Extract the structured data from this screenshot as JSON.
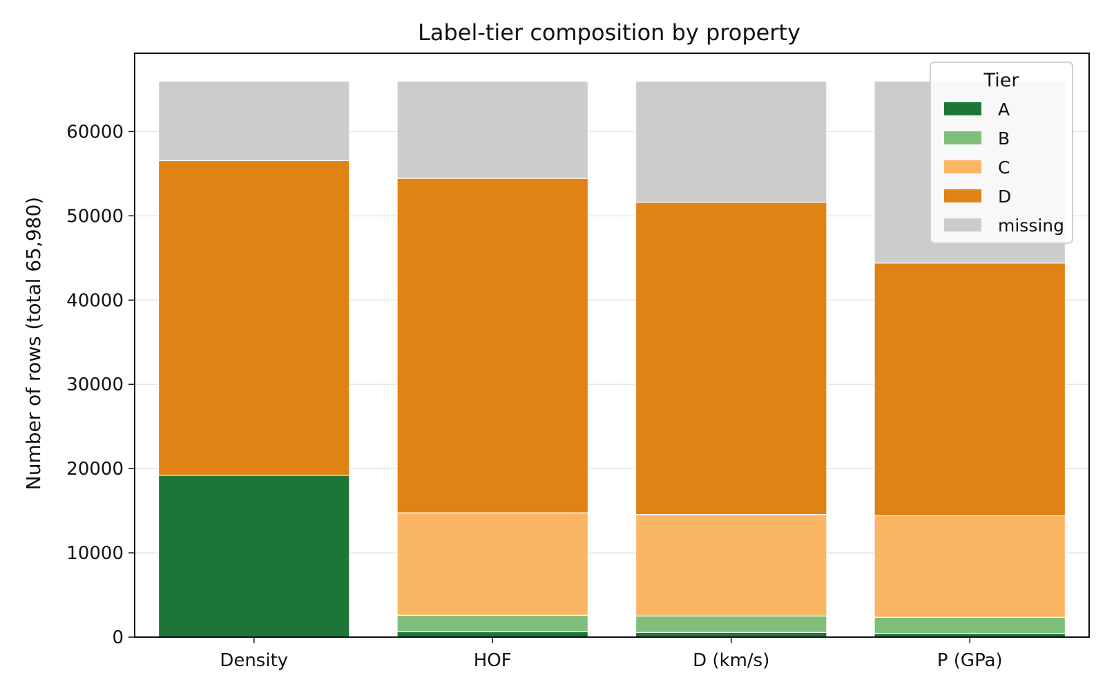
{
  "chart_data": {
    "type": "bar",
    "stacked": true,
    "title": "Label-tier composition by property",
    "xlabel": "",
    "ylabel": "Number of rows (total 65,980)",
    "categories": [
      "Density",
      "HOF",
      "D (km/s)",
      "P (GPa)"
    ],
    "ylim": [
      0,
      69300
    ],
    "yticks": [
      0,
      10000,
      20000,
      30000,
      40000,
      50000,
      60000
    ],
    "grid": "y",
    "legend": {
      "title": "Tier",
      "position": "top-right"
    },
    "series": [
      {
        "name": "A",
        "color": "#1e7538",
        "values": [
          19200,
          650,
          550,
          450
        ]
      },
      {
        "name": "B",
        "color": "#80bf7b",
        "values": [
          0,
          1950,
          1950,
          1900
        ]
      },
      {
        "name": "C",
        "color": "#fbb664",
        "values": [
          0,
          12150,
          12050,
          12050
        ]
      },
      {
        "name": "D",
        "color": "#e08214",
        "values": [
          37350,
          39700,
          37050,
          30000
        ]
      },
      {
        "name": "missing",
        "color": "#cccccc",
        "values": [
          9430,
          11530,
          14380,
          21580
        ]
      }
    ]
  }
}
